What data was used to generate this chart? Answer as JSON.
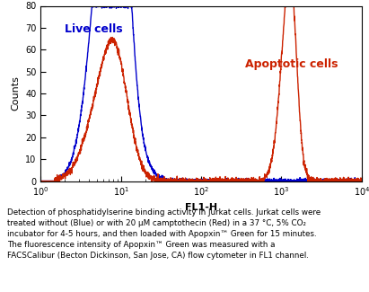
{
  "title": "",
  "xlabel": "FL1-H",
  "ylabel": "Counts",
  "xlim": [
    1,
    10000
  ],
  "ylim": [
    0,
    80
  ],
  "yticks": [
    0,
    10,
    20,
    30,
    40,
    50,
    60,
    70,
    80
  ],
  "blue_label": "Live cells",
  "red_label": "Apoptotic cells",
  "blue_color": "#0000cc",
  "red_color": "#cc2200",
  "caption_line1": "Detection of phosphatidylserine binding activity in Jurkat cells. Jurkat cells were",
  "caption_line2": "treated without (Blue) or with 20 μM camptothecin (Red) in a 37 °C, 5% CO₂",
  "caption_line3": "incubator for 4-5 hours, and then loaded with Apopxin™ Green for 15 minutes.",
  "caption_line4": "The fluorescence intensity of Apopxin™ Green was measured with a",
  "caption_line5": "FACSCalibur (Becton Dickinson, San Jose, CA) flow cytometer in FL1 channel.",
  "bg_color": "#ffffff"
}
